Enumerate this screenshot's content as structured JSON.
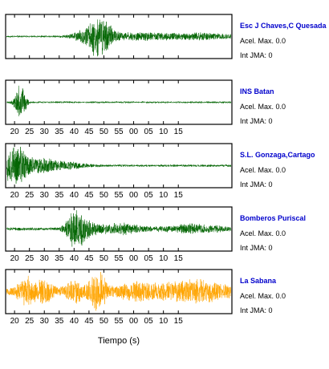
{
  "chart_data": {
    "type": "line",
    "x_ticks": [
      "20",
      "25",
      "30",
      "35",
      "40",
      "45",
      "50",
      "55",
      "00",
      "05",
      "10",
      "15"
    ],
    "xlabel": "Tiempo (s)",
    "panels": [
      {
        "station": "Esc J Chaves,C Quesada",
        "accel_text": "Acel. Max. 0.0",
        "int_text": "Int JMA: 0",
        "show_ticks": false,
        "color": "#006400",
        "station_color": "#0000cc",
        "bursts": [
          {
            "t": 47,
            "w": 6,
            "a": 0.55
          },
          {
            "t": 49,
            "w": 2.5,
            "a": 0.95
          },
          {
            "t": 63,
            "w": 12,
            "a": 0.18
          },
          {
            "t": 84,
            "w": 10,
            "a": 0.15
          }
        ],
        "noise": 0.05,
        "seed": 11
      },
      {
        "station": "INS Batan",
        "accel_text": "Acel. Max. 0.0",
        "int_text": "Int JMA: 0",
        "show_ticks": true,
        "color": "#006400",
        "station_color": "#0000cc",
        "bursts": [
          {
            "t": 22,
            "w": 1.8,
            "a": 0.9
          }
        ],
        "noise": 0.05,
        "seed": 23
      },
      {
        "station": "S.L. Gonzaga,Cartago",
        "accel_text": "Acel. Max. 0.0",
        "int_text": "Int JMA: 0",
        "show_ticks": true,
        "color": "#006400",
        "station_color": "#0000cc",
        "bursts": [
          {
            "t": 19,
            "w": 3,
            "a": 0.8
          },
          {
            "t": 22,
            "w": 3,
            "a": 0.65
          },
          {
            "t": 28,
            "w": 5,
            "a": 0.3
          },
          {
            "t": 36,
            "w": 8,
            "a": 0.18
          }
        ],
        "noise": 0.06,
        "seed": 37
      },
      {
        "station": "Bomberos Puriscal",
        "accel_text": "Acel. Max. 0.0",
        "int_text": "Int JMA: 0",
        "show_ticks": true,
        "color": "#006400",
        "station_color": "#0000cc",
        "bursts": [
          {
            "t": 40,
            "w": 2.5,
            "a": 0.95
          },
          {
            "t": 43,
            "w": 4,
            "a": 0.45
          },
          {
            "t": 55,
            "w": 8,
            "a": 0.25
          },
          {
            "t": 80,
            "w": 10,
            "a": 0.2
          }
        ],
        "noise": 0.08,
        "seed": 51
      },
      {
        "station": "La Sabana",
        "accel_text": "Acel. Max. 0.0",
        "int_text": "Int JMA: 0",
        "show_ticks": true,
        "color": "#ffa500",
        "station_color": "#0000cc",
        "bursts": [
          {
            "t": 24,
            "w": 3,
            "a": 0.65
          },
          {
            "t": 30,
            "w": 3,
            "a": 0.45
          },
          {
            "t": 40,
            "w": 3,
            "a": 0.5
          },
          {
            "t": 48,
            "w": 3,
            "a": 0.9
          },
          {
            "t": 60,
            "w": 6,
            "a": 0.35
          },
          {
            "t": 75,
            "w": 10,
            "a": 0.35
          },
          {
            "t": 85,
            "w": 8,
            "a": 0.3
          }
        ],
        "noise": 0.18,
        "seed": 67
      }
    ]
  }
}
